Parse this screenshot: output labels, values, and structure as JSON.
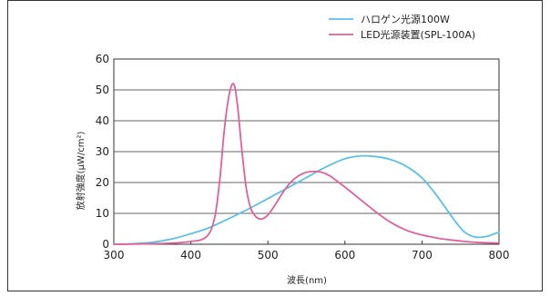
{
  "chart_data": {
    "type": "line",
    "xlabel": "波長(nm)",
    "ylabel": "放射強度(μW/cm²)",
    "xlim": [
      300,
      800
    ],
    "ylim": [
      0,
      60
    ],
    "xticks": [
      300,
      400,
      500,
      600,
      700,
      800
    ],
    "yticks": [
      0,
      10,
      20,
      30,
      40,
      50,
      60
    ],
    "grid": "horizontal",
    "legend_position": "top-right",
    "series": [
      {
        "name": "ハロゲン光源100W",
        "color": "#5bc0e8",
        "points": [
          [
            300,
            0
          ],
          [
            320,
            0.1
          ],
          [
            340,
            0.4
          ],
          [
            360,
            1.0
          ],
          [
            380,
            2.0
          ],
          [
            400,
            3.4
          ],
          [
            420,
            5.0
          ],
          [
            440,
            7.2
          ],
          [
            460,
            9.6
          ],
          [
            480,
            12.1
          ],
          [
            500,
            14.8
          ],
          [
            520,
            17.5
          ],
          [
            540,
            20.2
          ],
          [
            560,
            23.0
          ],
          [
            580,
            25.6
          ],
          [
            600,
            27.7
          ],
          [
            620,
            28.6
          ],
          [
            640,
            28.4
          ],
          [
            660,
            27.4
          ],
          [
            680,
            25.2
          ],
          [
            700,
            21.5
          ],
          [
            720,
            15.5
          ],
          [
            740,
            8.5
          ],
          [
            755,
            4.0
          ],
          [
            770,
            2.3
          ],
          [
            785,
            2.6
          ],
          [
            795,
            3.5
          ],
          [
            800,
            3.8
          ]
        ]
      },
      {
        "name": "LED光源装置(SPL-100A)",
        "color": "#e0609a",
        "points": [
          [
            300,
            0
          ],
          [
            340,
            0.1
          ],
          [
            380,
            0.4
          ],
          [
            400,
            0.9
          ],
          [
            415,
            1.6
          ],
          [
            425,
            4.0
          ],
          [
            432,
            10
          ],
          [
            438,
            22
          ],
          [
            443,
            36
          ],
          [
            448,
            46
          ],
          [
            453,
            51.5
          ],
          [
            457,
            51
          ],
          [
            461,
            44
          ],
          [
            466,
            31
          ],
          [
            472,
            18
          ],
          [
            478,
            11.5
          ],
          [
            485,
            8.8
          ],
          [
            492,
            8.2
          ],
          [
            500,
            9.5
          ],
          [
            510,
            13
          ],
          [
            520,
            17
          ],
          [
            530,
            20.2
          ],
          [
            540,
            22.2
          ],
          [
            550,
            23.3
          ],
          [
            560,
            23.6
          ],
          [
            570,
            23.3
          ],
          [
            580,
            22.2
          ],
          [
            600,
            18.5
          ],
          [
            620,
            14.5
          ],
          [
            640,
            10.5
          ],
          [
            660,
            7.0
          ],
          [
            680,
            4.5
          ],
          [
            700,
            3.0
          ],
          [
            720,
            2.0
          ],
          [
            740,
            1.3
          ],
          [
            760,
            0.8
          ],
          [
            780,
            0.5
          ],
          [
            800,
            0.4
          ]
        ]
      }
    ]
  }
}
